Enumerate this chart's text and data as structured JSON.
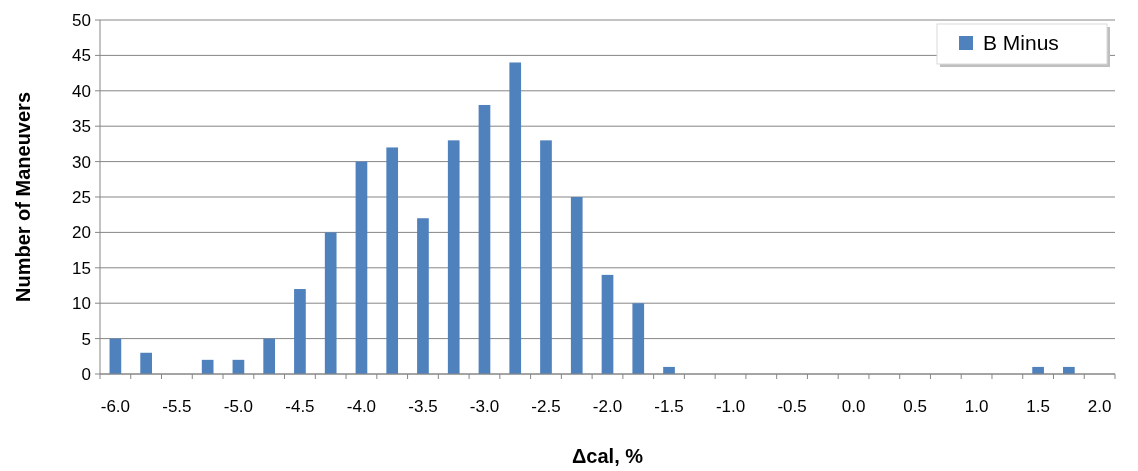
{
  "chart_data": {
    "type": "bar",
    "xlabel": "Δcal, %",
    "ylabel": "Number of Maneuvers",
    "categories": [
      "-6.0",
      null,
      "-5.5",
      null,
      "-5.0",
      null,
      "-4.5",
      null,
      "-4.0",
      null,
      "-3.5",
      null,
      "-3.0",
      null,
      "-2.5",
      null,
      "-2.0",
      null,
      "-1.5",
      null,
      "-1.0",
      null,
      "-0.5",
      null,
      "0.0",
      null,
      "0.5",
      null,
      "1.0",
      null,
      "1.5",
      null,
      "2.0"
    ],
    "series": [
      {
        "name": "B Minus",
        "color": "#4f81bd",
        "values": [
          5,
          3,
          0,
          2,
          2,
          5,
          12,
          20,
          30,
          32,
          22,
          33,
          38,
          44,
          33,
          25,
          14,
          10,
          1,
          0,
          0,
          0,
          0,
          0,
          0,
          0,
          0,
          0,
          0,
          0,
          1,
          1,
          0
        ]
      }
    ],
    "ylim": [
      0,
      50
    ],
    "yticks": [
      0,
      5,
      10,
      15,
      20,
      25,
      30,
      35,
      40,
      45,
      50
    ],
    "grid": "y",
    "legend": "top right"
  }
}
